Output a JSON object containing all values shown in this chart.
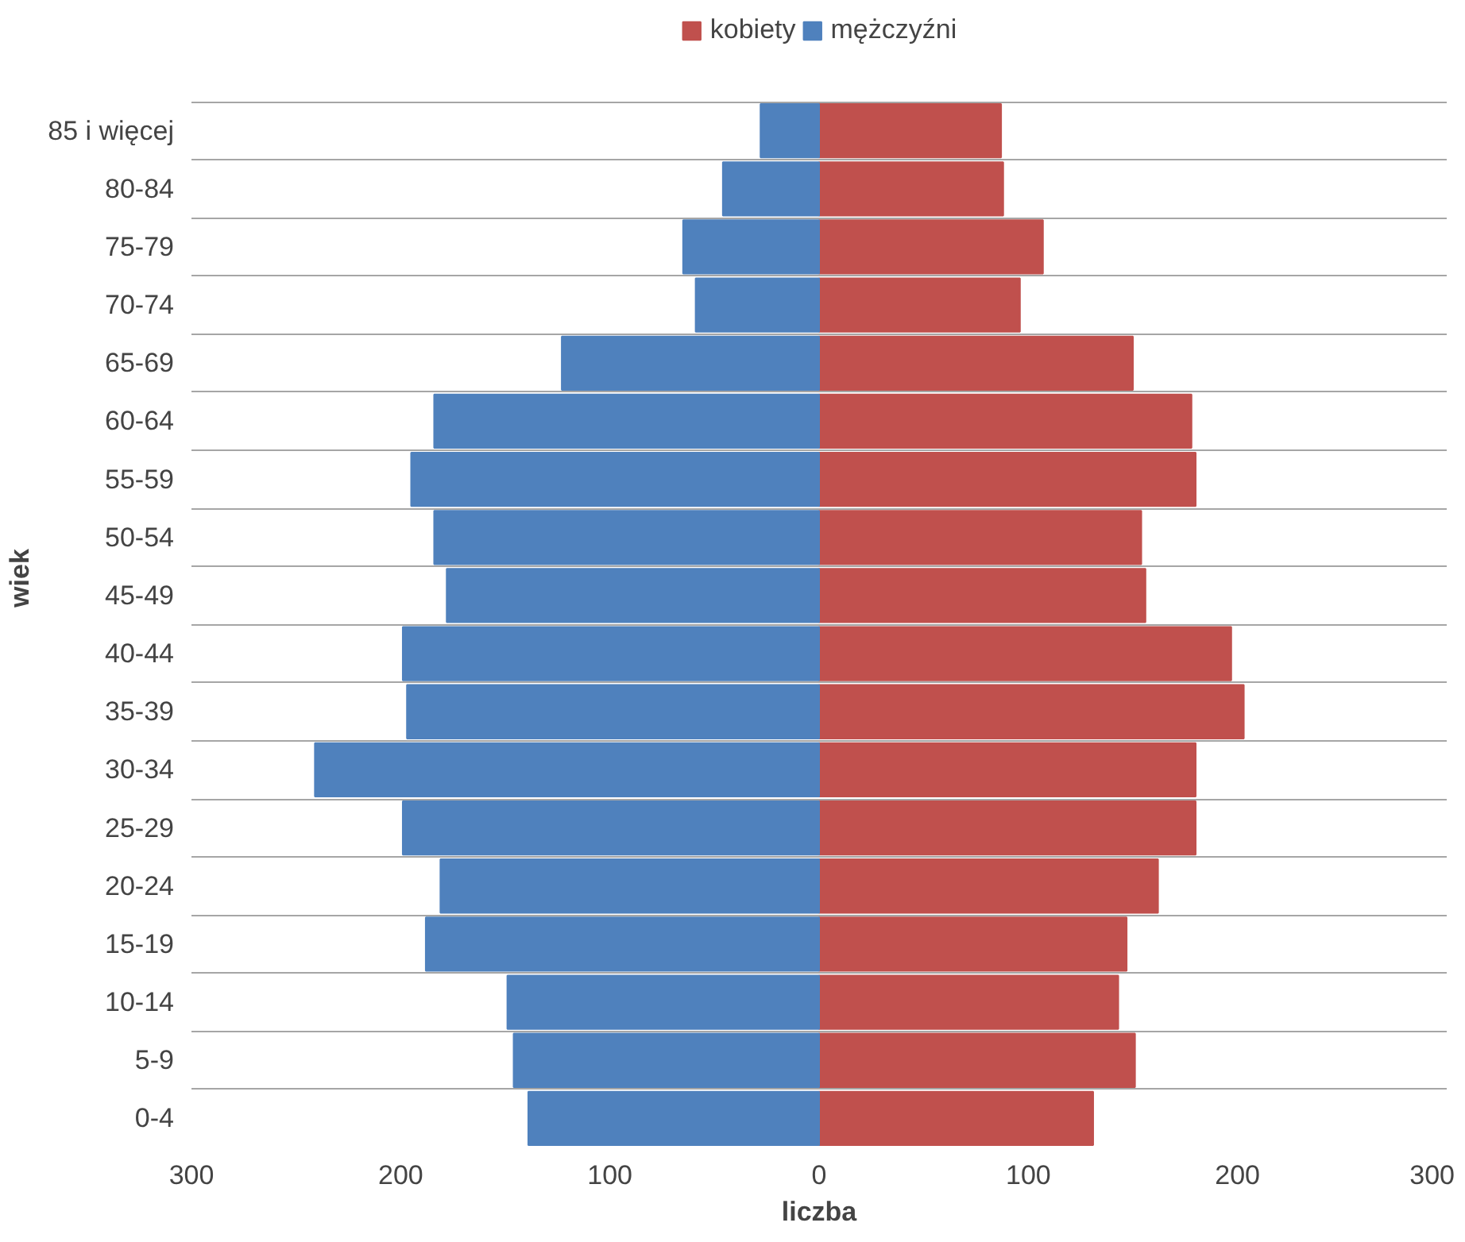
{
  "chart_data": {
    "type": "bar",
    "orientation": "horizontal",
    "xlabel": "liczba",
    "ylabel": "wiek",
    "categories": [
      "85 i więcej",
      "80-84",
      "75-79",
      "70-74",
      "65-69",
      "60-64",
      "55-59",
      "50-54",
      "45-49",
      "40-44",
      "35-39",
      "30-34",
      "25-29",
      "20-24",
      "15-19",
      "10-14",
      "5-9",
      "0-4"
    ],
    "series": [
      {
        "name": "kobiety",
        "color": "#c0504d",
        "values": [
          87,
          88,
          107,
          96,
          150,
          178,
          180,
          154,
          156,
          197,
          203,
          180,
          180,
          162,
          147,
          143,
          151,
          131
        ]
      },
      {
        "name": "mężczyźni",
        "color": "#4f81bd",
        "values": [
          -28,
          -46,
          -65,
          -59,
          -123,
          -184,
          -195,
          -184,
          -178,
          -199,
          -197,
          -241,
          -199,
          -181,
          -188,
          -149,
          -146,
          -139
        ]
      }
    ],
    "xlim": [
      -300,
      300
    ],
    "xticks": [
      {
        "value": -300,
        "label": "300"
      },
      {
        "value": -200,
        "label": "200"
      },
      {
        "value": -100,
        "label": "100"
      },
      0,
      100,
      200,
      300
    ],
    "stacked": true,
    "grid": "y",
    "legend": "top"
  }
}
